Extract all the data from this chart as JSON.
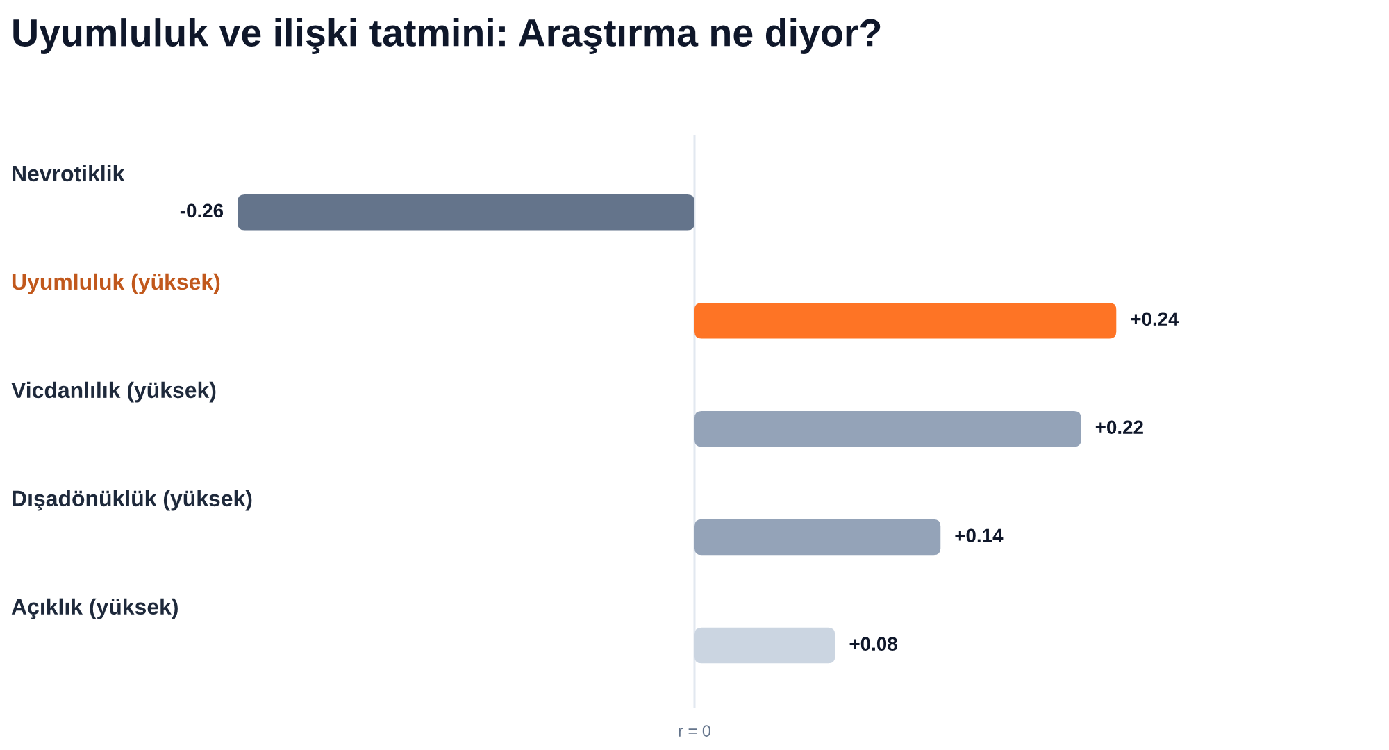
{
  "chart_data": {
    "type": "bar",
    "orientation": "horizontal",
    "title": "Uyumluluk ve ilişki tatmini: Araştırma ne diyor?",
    "categories": [
      "Nevrotiklik",
      "Uyumluluk (yüksek)",
      "Vicdanlılık (yüksek)",
      "Dışadönüklük (yüksek)",
      "Açıklık (yüksek)"
    ],
    "values": [
      -0.26,
      0.24,
      0.22,
      0.14,
      0.08
    ],
    "colors": [
      "#64748b",
      "#fe7425",
      "#94a3b8",
      "#94a3b8",
      "#cbd5e1"
    ],
    "value_labels": [
      "-0.26",
      "+0.24",
      "+0.22",
      "+0.14",
      "+0.08"
    ],
    "ref_lines": [
      {
        "axis": "x",
        "value": 0,
        "label": "r = 0",
        "color": "#e2e8f0"
      }
    ]
  }
}
